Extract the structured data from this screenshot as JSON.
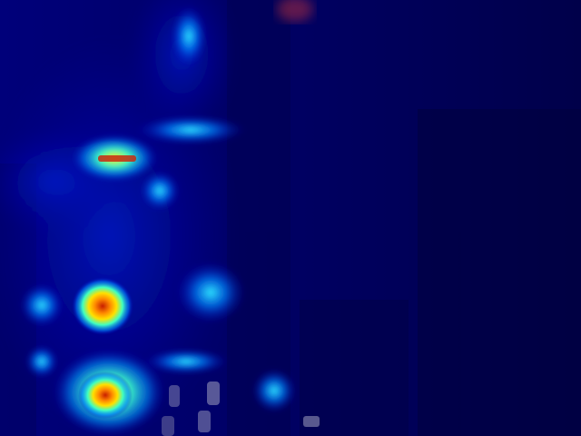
{
  "image": {
    "kind": "aerial night street photo with heatmap overlay",
    "colormap": "jet",
    "colors": {
      "background_low": "#00006a",
      "background_deep": "#000040",
      "medium": "#00c8ff",
      "warm": "#ffe000",
      "hot": "#c81e00"
    }
  }
}
